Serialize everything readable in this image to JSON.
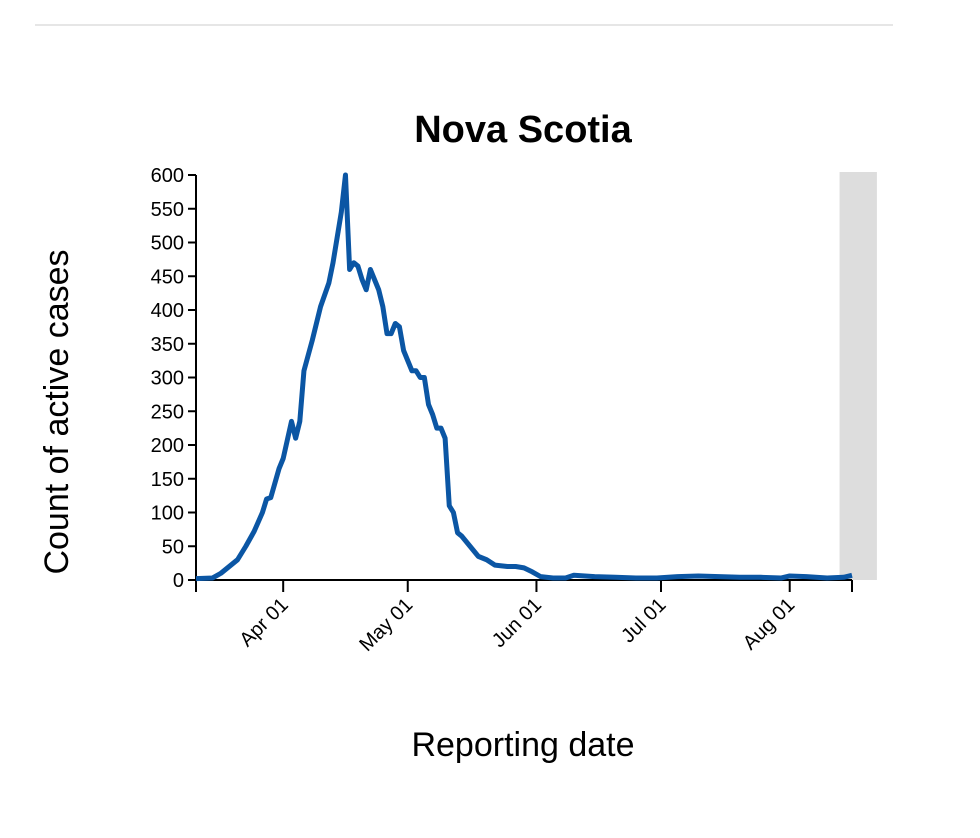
{
  "chart_data": {
    "type": "line",
    "title": "Nova Scotia",
    "x_label": "Reporting date",
    "y_label": "Count of active cases",
    "x": [
      "03-11",
      "03-15",
      "03-17",
      "03-19",
      "03-21",
      "03-23",
      "03-25",
      "03-27",
      "03-28",
      "03-29",
      "03-31",
      "04-01",
      "04-03",
      "04-04",
      "04-05",
      "04-06",
      "04-08",
      "04-10",
      "04-12",
      "04-13",
      "04-15",
      "04-16",
      "04-17",
      "04-18",
      "04-19",
      "04-20",
      "04-21",
      "04-22",
      "04-23",
      "04-24",
      "04-25",
      "04-26",
      "04-27",
      "04-28",
      "04-29",
      "04-30",
      "05-01",
      "05-02",
      "05-03",
      "05-04",
      "05-05",
      "05-06",
      "05-07",
      "05-08",
      "05-09",
      "05-10",
      "05-11",
      "05-12",
      "05-13",
      "05-14",
      "05-16",
      "05-18",
      "05-20",
      "05-22",
      "05-25",
      "05-27",
      "05-29",
      "05-31",
      "06-02",
      "06-05",
      "06-08",
      "06-10",
      "06-15",
      "06-20",
      "06-25",
      "06-30",
      "07-05",
      "07-10",
      "07-15",
      "07-20",
      "07-25",
      "07-30",
      "08-01",
      "08-05",
      "08-10",
      "08-14",
      "08-16"
    ],
    "series": [
      {
        "name": "Active cases",
        "color": "#0b56a4",
        "values": [
          2,
          3,
          10,
          20,
          30,
          50,
          72,
          100,
          120,
          122,
          165,
          180,
          235,
          210,
          235,
          310,
          355,
          405,
          440,
          470,
          545,
          600,
          460,
          470,
          465,
          445,
          430,
          460,
          445,
          430,
          405,
          365,
          365,
          380,
          375,
          340,
          325,
          310,
          310,
          300,
          300,
          260,
          245,
          225,
          225,
          210,
          110,
          100,
          70,
          65,
          50,
          35,
          30,
          22,
          20,
          20,
          18,
          12,
          5,
          3,
          3,
          7,
          5,
          4,
          3,
          3,
          5,
          6,
          5,
          4,
          4,
          3,
          6,
          5,
          3,
          4,
          7
        ]
      }
    ],
    "xlim": [
      "03-11",
      "08-16"
    ],
    "xticks": [
      {
        "value": "04-01",
        "label": "Apr 01"
      },
      {
        "value": "05-01",
        "label": "May 01"
      },
      {
        "value": "06-01",
        "label": "Jun 01"
      },
      {
        "value": "07-01",
        "label": "Jul 01"
      },
      {
        "value": "08-01",
        "label": "Aug 01"
      }
    ],
    "ylim": [
      0,
      600
    ],
    "yticks": [
      0,
      50,
      100,
      150,
      200,
      250,
      300,
      350,
      400,
      450,
      500,
      550,
      600
    ],
    "highlight": {
      "from": "08-13",
      "to": "08-22",
      "color": "#dddddd"
    }
  }
}
